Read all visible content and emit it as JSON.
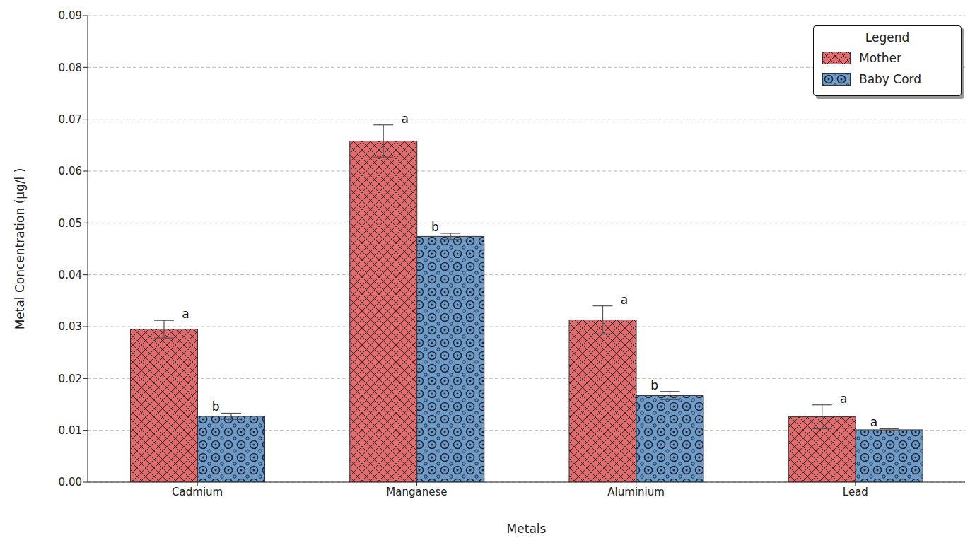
{
  "chart_data": {
    "type": "bar",
    "x_label": "Metals",
    "y_label": "Metal Concentration (μg/l )",
    "categories": [
      "Cadmium",
      "Manganese",
      "Aluminium",
      "Lead"
    ],
    "series": [
      {
        "name": "Mother",
        "color": "#e06c70",
        "values": [
          0.0295,
          0.0658,
          0.0313,
          0.0126
        ],
        "errors": [
          0.0017,
          0.0031,
          0.0027,
          0.0023
        ],
        "annotations": [
          "a",
          "a",
          "a",
          "a"
        ]
      },
      {
        "name": "Baby Cord",
        "color": "#6f9bc9",
        "values": [
          0.0127,
          0.0474,
          0.0167,
          0.0101
        ],
        "errors": [
          0.0006,
          0.0006,
          0.0008,
          0.0002
        ],
        "annotations": [
          "b",
          "b",
          "b",
          "a"
        ]
      }
    ],
    "ylim": [
      0,
      0.09
    ],
    "yticks": [
      {
        "value": 0,
        "label": "0.00"
      },
      0.01,
      0.02,
      0.03,
      0.04,
      0.05,
      0.06,
      0.07,
      0.08,
      0.09
    ],
    "grid": true,
    "legend": "upper right",
    "legend_title": "Legend"
  }
}
